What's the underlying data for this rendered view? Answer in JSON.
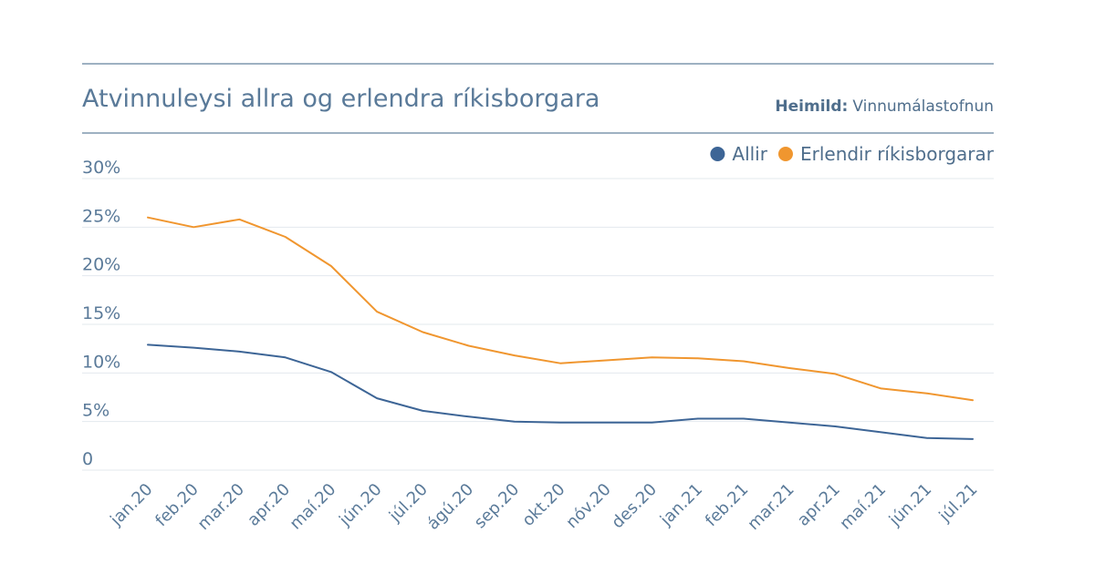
{
  "chart_data": {
    "type": "line",
    "title": "Atvinnuleysi allra og erlendra ríkisborgara",
    "source_label": "Heimild:",
    "source": "Vinnumálastofnun",
    "legend_position": "top-right",
    "categories": [
      "jan.20",
      "feb.20",
      "mar.20",
      "apr.20",
      "maí.20",
      "jún.20",
      "júl.20",
      "ágú.20",
      "sep.20",
      "okt.20",
      "nóv.20",
      "des.20",
      "jan.21",
      "feb.21",
      "mar.21",
      "apr.21",
      "maí.21",
      "jún.21",
      "júl.21"
    ],
    "yticks": [
      "0",
      "5%",
      "10%",
      "15%",
      "20%",
      "25%",
      "30%"
    ],
    "ylim": [
      0,
      30
    ],
    "grid": true,
    "series": [
      {
        "name": "Allir",
        "color": "#3d6596",
        "values": [
          12.9,
          12.6,
          12.2,
          11.6,
          10.1,
          7.4,
          6.1,
          5.5,
          5.0,
          4.9,
          4.9,
          4.9,
          5.3,
          5.3,
          4.9,
          4.5,
          3.9,
          3.3,
          3.2
        ]
      },
      {
        "name": "Erlendir ríkisborgarar",
        "color": "#f0962f",
        "values": [
          26.0,
          25.0,
          25.8,
          24.0,
          21.0,
          16.3,
          14.2,
          12.8,
          11.8,
          11.0,
          11.3,
          11.6,
          11.5,
          11.2,
          10.5,
          9.9,
          8.4,
          7.9,
          7.2
        ]
      }
    ]
  }
}
